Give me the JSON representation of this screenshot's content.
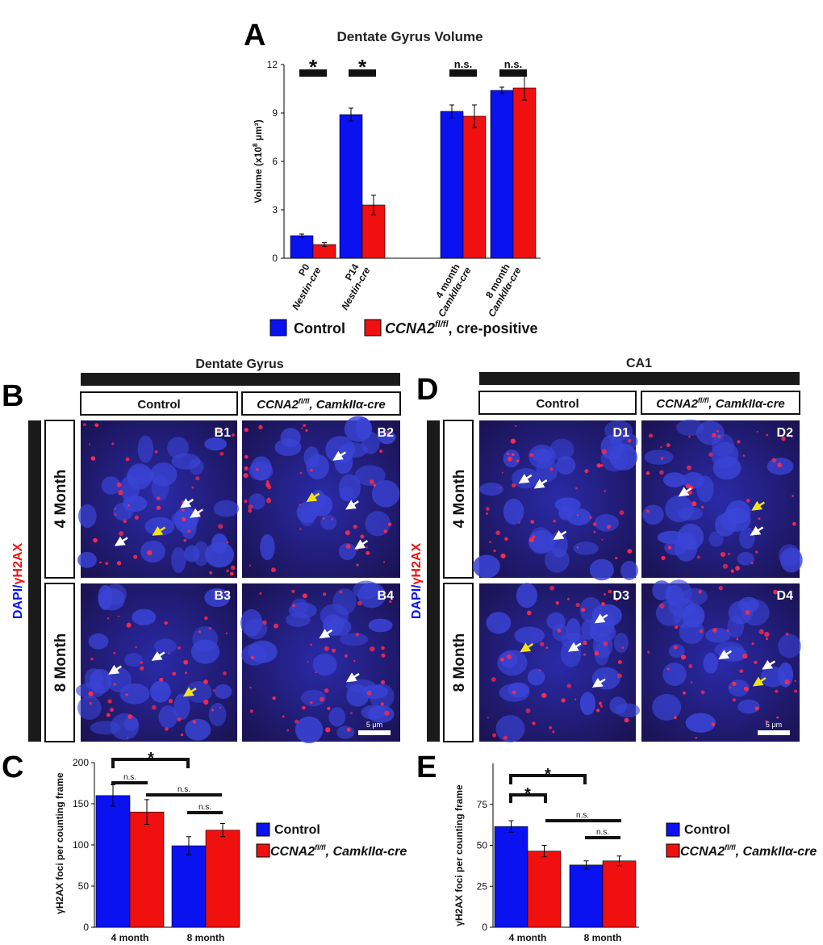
{
  "colors": {
    "control": "#0a12f0",
    "mutant": "#f01010",
    "arrow_white": "#ffffff",
    "arrow_yellow": "#f2e21a",
    "tissue_bg": "#1c1658"
  },
  "panel_labels": {
    "a": "A",
    "b": "B",
    "c": "C",
    "d": "D",
    "e": "E"
  },
  "legend_a": {
    "control": "Control",
    "mutant_main": "CCNA2",
    "mutant_sup": "fl/fl",
    "mutant_rest": ", cre-positive"
  },
  "legend_c": {
    "control": "Control",
    "mutant_main": "CCNA2",
    "mutant_sup": "fl/fl",
    "mutant_rest": ", CamkIIα-cre"
  },
  "legend_e": {
    "control": "Control",
    "mutant_main": "CCNA2",
    "mutant_sup": "fl/fl",
    "mutant_rest": ", CamkIIα-cre"
  },
  "micro": {
    "dg_title": "Dentate Gyrus",
    "ca1_title": "CA1",
    "control": "Control",
    "mutant_main": "CCNA2",
    "mutant_sup": "fl/fl",
    "mutant_rest": ", CamkIIα-cre",
    "row_4": "4 Month",
    "row_8": "8 Month",
    "side_dapi": "DAPI/",
    "side_gamma": "γ",
    "side_h2ax": "H2AX",
    "cells_b": [
      "B1",
      "B2",
      "B3",
      "B4"
    ],
    "cells_d": [
      "D1",
      "D2",
      "D3",
      "D4"
    ],
    "scale": "5 μm"
  },
  "chart_data": [
    {
      "id": "A",
      "type": "bar",
      "title": "Dentate Gyrus Volume",
      "ylabel_main": "Volume (x10",
      "ylabel_sup": "8",
      "ylabel_rest": " μm³)",
      "ylim": [
        0,
        12
      ],
      "yticks": [
        0,
        3,
        6,
        9,
        12
      ],
      "groups": [
        {
          "label_top": "P0",
          "label_bottom": "Nestin-cre",
          "sig": "*",
          "values": [
            1.4,
            0.85
          ],
          "errors": [
            0.1,
            0.12
          ]
        },
        {
          "label_top": "P14",
          "label_bottom": "Nestin-cre",
          "sig": "*",
          "values": [
            8.9,
            3.3
          ],
          "errors": [
            0.4,
            0.6
          ]
        },
        {
          "label_top": "4 month",
          "label_bottom": "CamkIIα-cre",
          "sig": "n.s.",
          "values": [
            9.1,
            8.8
          ],
          "errors": [
            0.4,
            0.7
          ]
        },
        {
          "label_top": "8 month",
          "label_bottom": "CamkIIα-cre",
          "sig": "n.s.",
          "values": [
            10.4,
            10.55
          ],
          "errors": [
            0.2,
            0.75
          ]
        }
      ],
      "series": [
        "Control",
        "CCNA2 fl/fl, cre-positive"
      ]
    },
    {
      "id": "C",
      "type": "bar",
      "ylabel": "γH2AX foci per counting frame",
      "ylim": [
        0,
        200
      ],
      "yticks": [
        0,
        50,
        100,
        150,
        200
      ],
      "categories": [
        "4 month",
        "8 month"
      ],
      "series": [
        {
          "name": "Control",
          "values": [
            160,
            99
          ],
          "errors": [
            13,
            11
          ]
        },
        {
          "name": "CCNA2 fl/fl, CamkIIα-cre",
          "values": [
            140,
            118
          ],
          "errors": [
            15,
            8
          ]
        }
      ],
      "annotations": {
        "star": "*",
        "ns_a": "n.s.",
        "ns_b": "n.s.",
        "ns_c": "n.s."
      }
    },
    {
      "id": "E",
      "type": "bar",
      "ylabel": "γH2AX foci per counting frame",
      "ylim": [
        0,
        100
      ],
      "yticks": [
        0,
        25,
        50,
        75
      ],
      "categories": [
        "4 month",
        "8 month"
      ],
      "series": [
        {
          "name": "Control",
          "values": [
            61.5,
            38
          ],
          "errors": [
            3.5,
            2.5
          ]
        },
        {
          "name": "CCNA2 fl/fl, CamkIIα-cre",
          "values": [
            46.5,
            40.5
          ],
          "errors": [
            3.5,
            3
          ]
        }
      ],
      "annotations": {
        "star_top": "*",
        "star_low": "*",
        "ns_a": "n.s.",
        "ns_b": "n.s."
      }
    }
  ]
}
